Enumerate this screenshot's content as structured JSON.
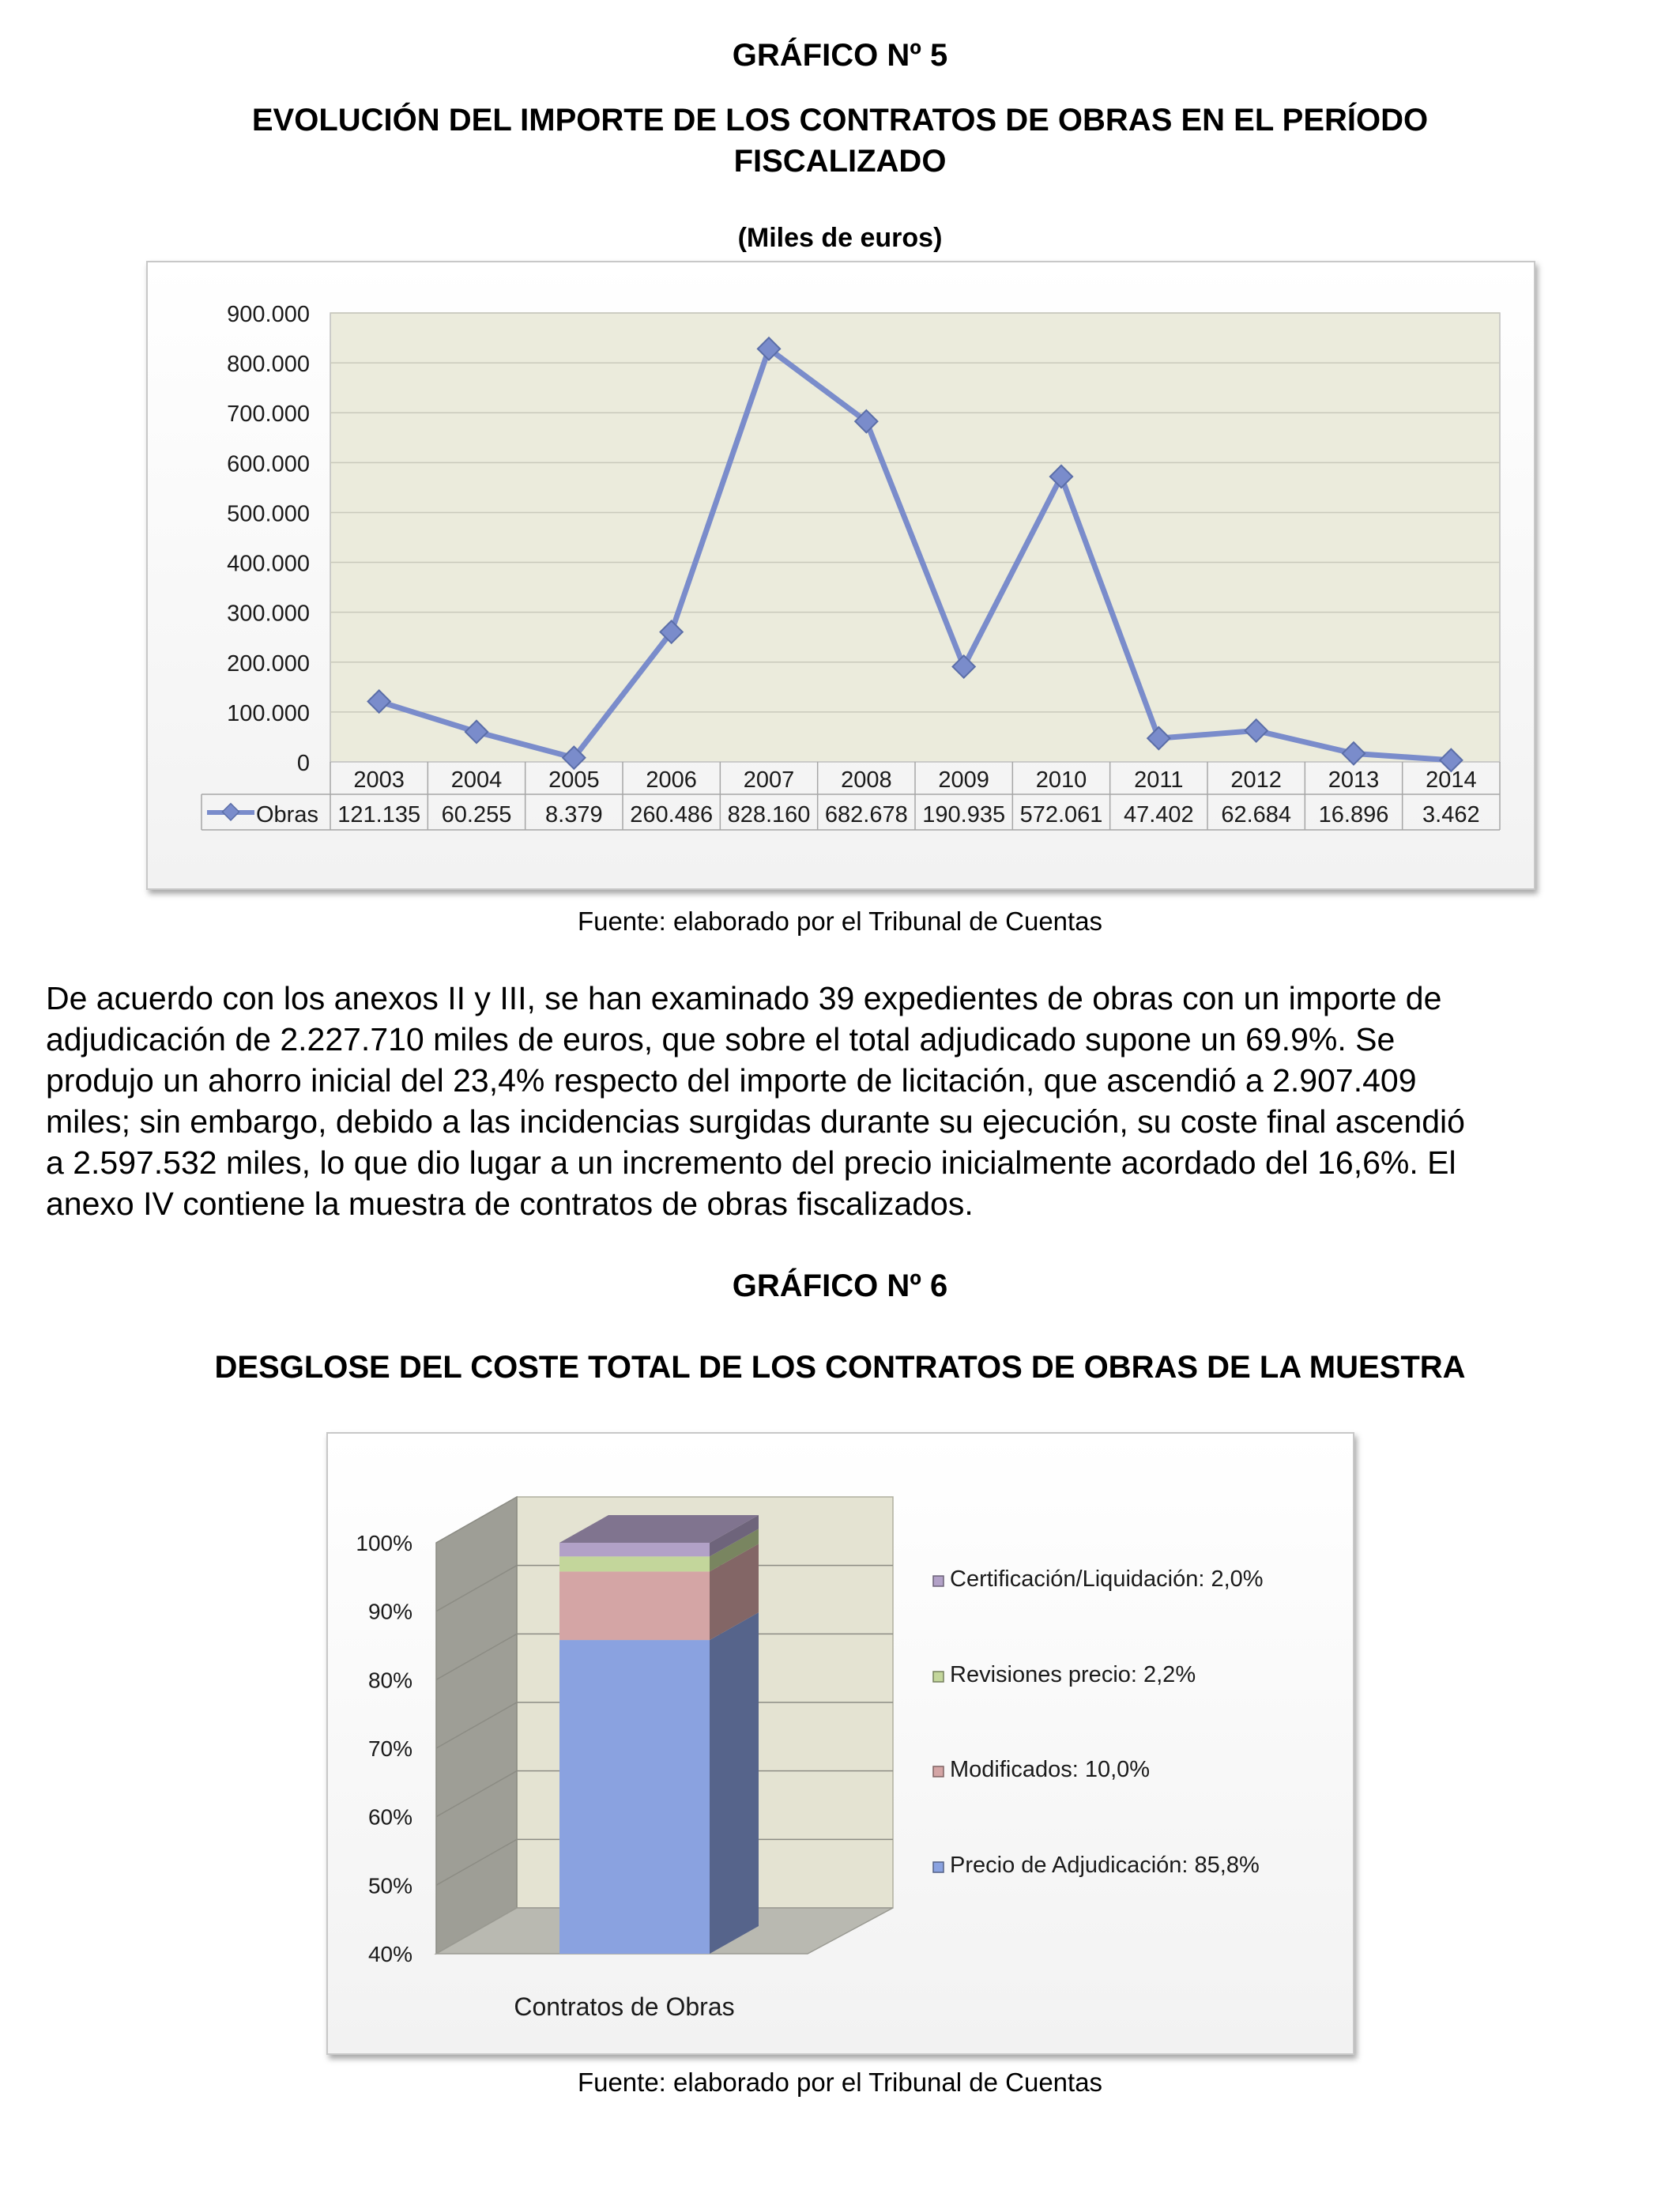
{
  "graph5": {
    "number": "GRÁFICO Nº 5",
    "title_line1": "EVOLUCIÓN DEL IMPORTE DE LOS CONTRATOS DE OBRAS EN EL PERÍODO",
    "title_line2": "FISCALIZADO",
    "unit": "(Miles de euros)",
    "source": "Fuente: elaborado por el Tribunal de Cuentas"
  },
  "paragraph": [
    "De acuerdo con los anexos II y III, se han examinado 39 expedientes de obras con un importe de",
    "adjudicación de 2.227.710 miles de euros, que sobre el total adjudicado supone un 69.9%. Se",
    "produjo un ahorro inicial del 23,4% respecto del importe de licitación, que ascendió a 2.907.409",
    "miles; sin embargo, debido a las incidencias surgidas durante su ejecución, su coste final ascendió",
    "a 2.597.532 miles, lo que dio lugar a un incremento del precio inicialmente acordado del 16,6%. El",
    "anexo IV contiene la muestra de contratos de obras fiscalizados."
  ],
  "graph6": {
    "number": "GRÁFICO Nº 6",
    "title": "DESGLOSE DEL COSTE TOTAL DE LOS CONTRATOS DE OBRAS DE LA MUESTRA",
    "source": "Fuente: elaborado por el Tribunal de Cuentas"
  },
  "chart_data": [
    {
      "type": "line",
      "series": [
        {
          "name": "Obras",
          "color": "#7a8ccb",
          "values": [
            121135,
            60255,
            8379,
            260486,
            828160,
            682678,
            190935,
            572061,
            47402,
            62684,
            16896,
            3462
          ],
          "labels": [
            "121.135",
            "60.255",
            "8.379",
            "260.486",
            "828.160",
            "682.678",
            "190.935",
            "572.061",
            "47.402",
            "62.684",
            "16.896",
            "3.462"
          ]
        }
      ],
      "categories": [
        "2003",
        "2004",
        "2005",
        "2006",
        "2007",
        "2008",
        "2009",
        "2010",
        "2011",
        "2012",
        "2013",
        "2014"
      ],
      "ylim": [
        0,
        900000
      ],
      "yticks": [
        "0",
        "100.000",
        "200.000",
        "300.000",
        "400.000",
        "500.000",
        "600.000",
        "700.000",
        "800.000",
        "900.000"
      ],
      "grid": true,
      "legend": "data-table",
      "plot_background": "#ebebdc"
    },
    {
      "type": "bar",
      "stacked": true,
      "three_d": true,
      "categories": [
        "Contratos de Obras"
      ],
      "ylim": [
        40,
        100
      ],
      "yticks": [
        "40%",
        "50%",
        "60%",
        "70%",
        "80%",
        "90%",
        "100%"
      ],
      "series": [
        {
          "name": "Precio de Adjudicación: 85,8%",
          "value": 85.8,
          "color": "#8aa2e0"
        },
        {
          "name": "Modificados: 10,0%",
          "value": 10.0,
          "color": "#d4a5a5"
        },
        {
          "name": "Revisiones precio: 2,2%",
          "value": 2.2,
          "color": "#c3d69b"
        },
        {
          "name": "Certificación/Liquidación: 2,0%",
          "value": 2.0,
          "color": "#b2a1c7"
        }
      ],
      "legend": "right"
    }
  ]
}
